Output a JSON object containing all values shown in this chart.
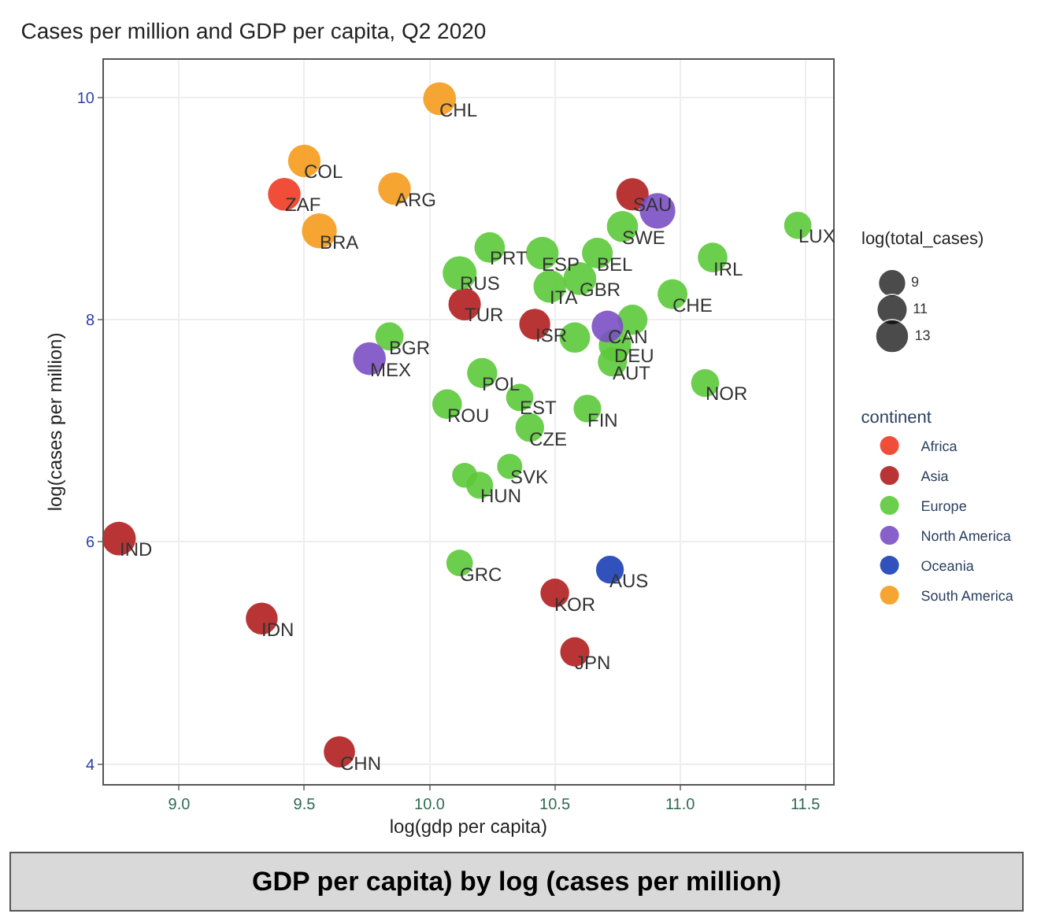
{
  "chart_data": {
    "type": "bubble",
    "title": "Cases per million and GDP per capita, Q2 2020",
    "xlabel": "log(gdp per capita)",
    "ylabel": "log(cases per million)",
    "legend_title": "continent",
    "xlim": [
      8.7,
      11.61
    ],
    "ylim": [
      3.82,
      10.34
    ],
    "xticks": [
      {
        "value": 9,
        "label": "9.0"
      },
      {
        "value": 9.5,
        "label": "9.5"
      },
      {
        "value": 10,
        "label": "10.0"
      },
      {
        "value": 10.5,
        "label": "10.5"
      },
      {
        "value": 11,
        "label": "11.0"
      },
      {
        "value": 11.5,
        "label": "11.5"
      }
    ],
    "yticks": [
      4,
      6,
      8,
      10
    ],
    "grid": true,
    "legend": "right",
    "size_legend": [
      9,
      11,
      13
    ],
    "series": [
      {
        "name": "Africa",
        "color": "#ee3b24",
        "x": [
          9.42
        ],
        "values": [
          9.13
        ],
        "sizes": [
          12.4
        ]
      },
      {
        "name": "Asia",
        "color": "#b11f1f",
        "x": [
          10.81,
          10.14,
          10.42,
          8.76,
          9.33,
          10.5,
          10.58,
          9.64
        ],
        "values": [
          9.13,
          8.14,
          7.96,
          6.03,
          5.31,
          5.54,
          5.01,
          4.11
        ],
        "sizes": [
          12.2,
          12.2,
          11.2,
          13.2,
          11.8,
          9.6,
          10.0,
          11.4
        ]
      },
      {
        "name": "Europe",
        "color": "#5cc93a",
        "x": [
          10.24,
          10.45,
          10.67,
          10.77,
          11.47,
          11.13,
          10.48,
          10.6,
          10.12,
          10.97,
          10.58,
          10.81,
          10.74,
          10.73,
          9.84,
          10.21,
          10.36,
          10.07,
          10.63,
          11.1,
          10.4,
          10.32,
          10.2,
          10.14,
          10.12
        ],
        "values": [
          8.65,
          8.6,
          8.6,
          8.84,
          8.85,
          8.56,
          8.3,
          8.37,
          8.42,
          8.23,
          7.84,
          8.0,
          7.77,
          7.62,
          7.85,
          7.52,
          7.3,
          7.24,
          7.2,
          7.43,
          7.03,
          6.68,
          6.51,
          6.6,
          5.81
        ],
        "sizes": [
          10.8,
          12.4,
          11.0,
          11.3,
          8.7,
          10.2,
          12.4,
          12.6,
          13.4,
          10.4,
          10.8,
          10.5,
          12.2,
          9.9,
          9.3,
          10.6,
          8.7,
          10.2,
          8.9,
          9.1,
          9.6,
          7.4,
          8.4,
          7.2,
          8.2
        ]
      },
      {
        "name": "North America",
        "color": "#7b4fc4",
        "x": [
          10.91,
          10.71,
          9.76
        ],
        "values": [
          8.98,
          7.94,
          7.65
        ],
        "sizes": [
          14.8,
          11.6,
          12.5
        ]
      },
      {
        "name": "Oceania",
        "color": "#1b3fb5",
        "x": [
          10.72
        ],
        "values": [
          5.75
        ],
        "sizes": [
          9.0
        ]
      },
      {
        "name": "South America",
        "color": "#f59b1c",
        "x": [
          10.04,
          9.5,
          9.86,
          9.56
        ],
        "values": [
          9.99,
          9.43,
          9.18,
          8.8
        ],
        "sizes": [
          12.6,
          12.3,
          12.4,
          14.2
        ]
      }
    ],
    "annotations": [
      "log(total_cases)",
      "GDP per capita) by log (cases per million)",
      {
        "text": "ZAF",
        "x": 9.42,
        "y": 9.13
      },
      {
        "text": "SAU",
        "x": 10.81,
        "y": 9.13
      },
      {
        "text": "TUR",
        "x": 10.14,
        "y": 8.14
      },
      {
        "text": "ISR",
        "x": 10.42,
        "y": 7.96
      },
      {
        "text": "IND",
        "x": 8.76,
        "y": 6.03
      },
      {
        "text": "IDN",
        "x": 9.33,
        "y": 5.31
      },
      {
        "text": "KOR",
        "x": 10.5,
        "y": 5.54
      },
      {
        "text": "JPN",
        "x": 10.58,
        "y": 5.01
      },
      {
        "text": "CHN",
        "x": 9.64,
        "y": 4.11
      },
      {
        "text": "PRT",
        "x": 10.24,
        "y": 8.65
      },
      {
        "text": "ESP",
        "x": 10.45,
        "y": 8.6
      },
      {
        "text": "BEL",
        "x": 10.67,
        "y": 8.6
      },
      {
        "text": "SWE",
        "x": 10.77,
        "y": 8.84
      },
      {
        "text": "LUX",
        "x": 11.47,
        "y": 8.85
      },
      {
        "text": "IRL",
        "x": 11.13,
        "y": 8.56
      },
      {
        "text": "ITA",
        "x": 10.48,
        "y": 8.3
      },
      {
        "text": "GBR",
        "x": 10.6,
        "y": 8.37
      },
      {
        "text": "RUS",
        "x": 10.12,
        "y": 8.42
      },
      {
        "text": "CHE",
        "x": 10.97,
        "y": 8.23
      },
      {
        "text": "DEU",
        "x": 10.74,
        "y": 7.77
      },
      {
        "text": "AUT",
        "x": 10.73,
        "y": 7.62
      },
      {
        "text": "BGR",
        "x": 9.84,
        "y": 7.85
      },
      {
        "text": "POL",
        "x": 10.21,
        "y": 7.52
      },
      {
        "text": "EST",
        "x": 10.36,
        "y": 7.3
      },
      {
        "text": "ROU",
        "x": 10.07,
        "y": 7.24
      },
      {
        "text": "FIN",
        "x": 10.63,
        "y": 7.2
      },
      {
        "text": "NOR",
        "x": 11.1,
        "y": 7.43
      },
      {
        "text": "CZE",
        "x": 10.4,
        "y": 7.03
      },
      {
        "text": "SVK",
        "x": 10.32,
        "y": 6.68
      },
      {
        "text": "HUN",
        "x": 10.2,
        "y": 6.51
      },
      {
        "text": "GRC",
        "x": 10.12,
        "y": 5.81
      },
      {
        "text": "CAN",
        "x": 10.71,
        "y": 7.94
      },
      {
        "text": "MEX",
        "x": 9.76,
        "y": 7.65
      },
      {
        "text": "AUS",
        "x": 10.72,
        "y": 5.75
      },
      {
        "text": "CHL",
        "x": 10.04,
        "y": 9.99
      },
      {
        "text": "COL",
        "x": 9.5,
        "y": 9.43
      },
      {
        "text": "ARG",
        "x": 9.86,
        "y": 9.18
      },
      {
        "text": "BRA",
        "x": 9.56,
        "y": 8.8
      }
    ]
  }
}
